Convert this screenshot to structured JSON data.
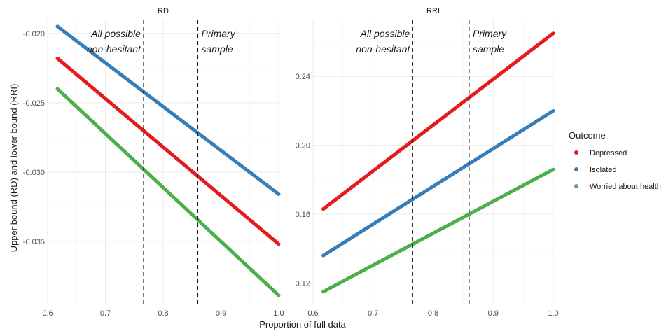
{
  "chart_data": {
    "type": "line",
    "xlabel": "Proportion of full data",
    "ylabel": "Upper bound (RD) and lower bound (RRI)",
    "legend": {
      "title": "Outcome",
      "placement": "right",
      "items": [
        {
          "name": "Depressed",
          "color": "#e41a1c"
        },
        {
          "name": "Isolated",
          "color": "#377eb8"
        },
        {
          "name": "Worried about health",
          "color": "#4daf4a"
        }
      ]
    },
    "panels": [
      {
        "strip": "RD",
        "xlim": [
          0.6,
          1.0
        ],
        "ylim": [
          -0.0395,
          -0.019
        ],
        "x_ticks": [
          0.6,
          0.7,
          0.8,
          0.9,
          1.0
        ],
        "x_tick_labels": [
          "0.6",
          "0.7",
          "0.8",
          "0.9",
          "1.0"
        ],
        "y_ticks": [
          -0.02,
          -0.025,
          -0.03,
          -0.035
        ],
        "y_tick_labels": [
          "-0.020",
          "-0.025",
          "-0.030",
          "-0.035"
        ],
        "vlines": [
          0.766,
          0.86
        ],
        "annotations": [
          {
            "lines": [
              "All possible",
              "non-hesitant"
            ],
            "x": 0.766,
            "align": "end"
          },
          {
            "lines": [
              "Primary",
              "sample"
            ],
            "x": 0.86,
            "align": "start"
          }
        ],
        "series": [
          {
            "name": "Depressed",
            "color": "#e41a1c",
            "x": [
              0.617,
              1.0
            ],
            "y": [
              -0.0218,
              -0.0352
            ]
          },
          {
            "name": "Isolated",
            "color": "#377eb8",
            "x": [
              0.617,
              1.0
            ],
            "y": [
              -0.0195,
              -0.0316
            ]
          },
          {
            "name": "Worried about health",
            "color": "#4daf4a",
            "x": [
              0.617,
              1.0
            ],
            "y": [
              -0.024,
              -0.0389
            ]
          }
        ]
      },
      {
        "strip": "RRI",
        "xlim": [
          0.6,
          1.0
        ],
        "ylim": [
          0.108,
          0.273
        ],
        "x_ticks": [
          0.6,
          0.7,
          0.8,
          0.9,
          1.0
        ],
        "x_tick_labels": [
          "0.6",
          "0.7",
          "0.8",
          "0.9",
          "1.0"
        ],
        "y_ticks": [
          0.12,
          0.16,
          0.2,
          0.24
        ],
        "y_tick_labels": [
          "0.12",
          "0.16",
          "0.20",
          "0.24"
        ],
        "vlines": [
          0.766,
          0.86
        ],
        "annotations": [
          {
            "lines": [
              "All possible",
              "non-hesitant"
            ],
            "x": 0.766,
            "align": "end"
          },
          {
            "lines": [
              "Primary",
              "sample"
            ],
            "x": 0.86,
            "align": "start"
          }
        ],
        "series": [
          {
            "name": "Depressed",
            "color": "#e41a1c",
            "x": [
              0.617,
              1.0
            ],
            "y": [
              0.163,
              0.265
            ]
          },
          {
            "name": "Isolated",
            "color": "#377eb8",
            "x": [
              0.617,
              1.0
            ],
            "y": [
              0.136,
              0.22
            ]
          },
          {
            "name": "Worried about health",
            "color": "#4daf4a",
            "x": [
              0.617,
              1.0
            ],
            "y": [
              0.115,
              0.186
            ]
          }
        ]
      }
    ]
  }
}
